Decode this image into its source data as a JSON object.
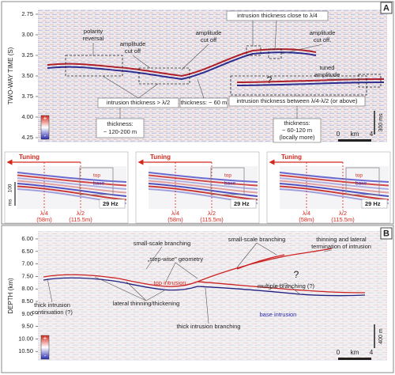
{
  "panel_a": {
    "label": "A",
    "y_axis": {
      "title": "TWO-WAY TIME (S)",
      "ticks": [
        "2.75",
        "3.00",
        "3.25",
        "3.50",
        "3.75",
        "4.00",
        "4.25"
      ]
    },
    "annotations": {
      "polarity": [
        "polarity",
        "reversal"
      ],
      "cutoff_1": [
        "amplitude",
        "cut off"
      ],
      "cutoff_2": [
        "amplitude",
        "cut off"
      ],
      "close_quarter": "intrusion thickness close to λ/4",
      "cutoff_3": [
        "amplitude",
        "cut off."
      ],
      "tuned": [
        "tuned",
        "amplitude"
      ],
      "question": "?",
      "gt_half": "intrusion thickness > λ/2",
      "thick_60": "thickness: ~ 60 m",
      "between": "intrusion thickness between λ/4-λ/2 (or above)",
      "thick_120": [
        "thickness:",
        "~ 120-200 m"
      ],
      "thick_60_120": [
        "thickness:",
        "~ 60-120 m",
        "(locally more)"
      ]
    },
    "colorbar": {
      "plus": "+",
      "minus": "-"
    },
    "scale": {
      "vertical": "300 ms",
      "start": "0",
      "unit": "km",
      "end": "4"
    },
    "insets": [
      {
        "tuning": "Tuning",
        "top": "top",
        "base": "base",
        "frequency": "29 Hz",
        "quarter": "λ/4",
        "quarter_value": "(58m)",
        "half": "λ/2",
        "half_value": "(115.5m)",
        "time_scale": "100",
        "time_unit": "ms"
      },
      {
        "tuning": "Tuning",
        "top": "top",
        "base": "base",
        "frequency": "29 Hz",
        "quarter": "λ/4",
        "quarter_value": "(58m)",
        "half": "λ/2",
        "half_value": "(115.5m)"
      },
      {
        "tuning": "Tuning",
        "top": "top",
        "base": "base",
        "frequency": "29 Hz",
        "quarter": "λ/4",
        "quarter_value": "(58m)",
        "half": "λ/2",
        "half_value": "(115.5m)"
      }
    ]
  },
  "panel_b": {
    "label": "B",
    "y_axis": {
      "title": "DEPTH (km)",
      "ticks": [
        "6.00",
        "6.50",
        "7.00",
        "7.50",
        "8.00",
        "8.50",
        "9.00",
        "9.50",
        "10.00",
        "10.50"
      ]
    },
    "annotations": {
      "branching_1": "small-scale branching",
      "stepwise": "„step-wise\" geometry",
      "branching_2": "small-scale branching",
      "termination": [
        "thinning and lateral",
        "termination of intrusion"
      ],
      "question": "?",
      "multiple": "multiple branching (?)",
      "top": "top intrusion",
      "continuation": [
        "thick intrusion",
        "continuation (?)"
      ],
      "lateral": "lateral thinning/thickening",
      "thick_branching": "thick intrusion branching",
      "base": "base intrusion"
    },
    "colorbar": {
      "plus": "+",
      "minus": "-"
    },
    "scale": {
      "vertical": "400 m",
      "start": "0",
      "unit": "km",
      "end": "4"
    }
  }
}
